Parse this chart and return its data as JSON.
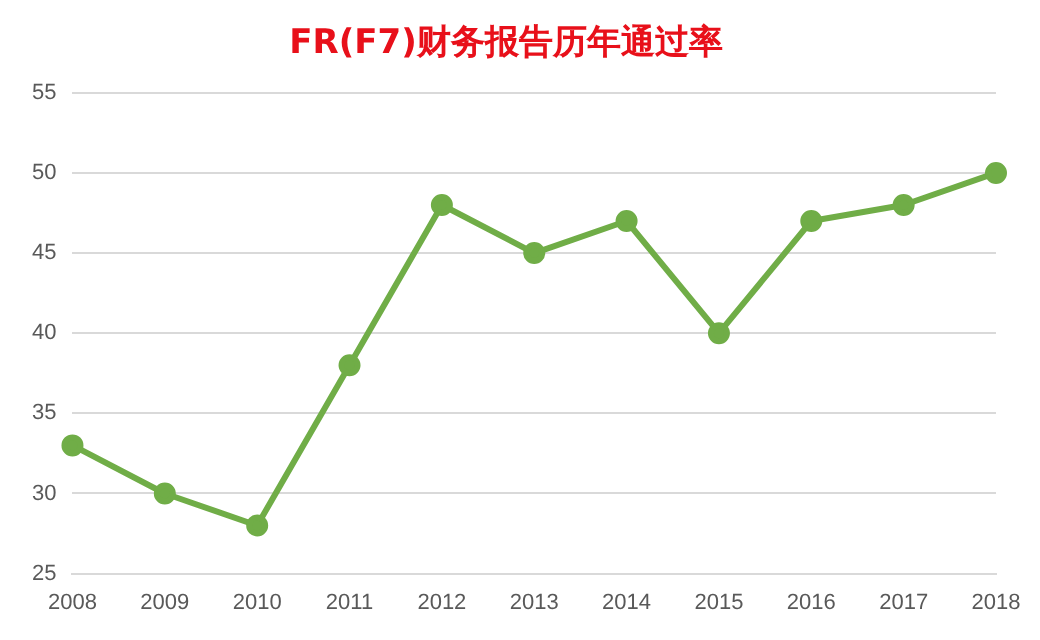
{
  "chart_data": {
    "type": "line",
    "title": "FR(F7)财务报告历年通过率",
    "categories": [
      "2008",
      "2009",
      "2010",
      "2011",
      "2012",
      "2013",
      "2014",
      "2015",
      "2016",
      "2017",
      "2018"
    ],
    "series": [
      {
        "color": "#70ad47",
        "values": [
          33,
          30,
          28,
          38,
          48,
          45,
          47,
          40,
          47,
          48,
          50
        ]
      }
    ],
    "ylim": [
      25,
      55
    ],
    "yticks": [
      25,
      30,
      35,
      40,
      45,
      50,
      55
    ],
    "grid": "y",
    "legend": false,
    "marker": "circle",
    "line_style": "solid"
  }
}
